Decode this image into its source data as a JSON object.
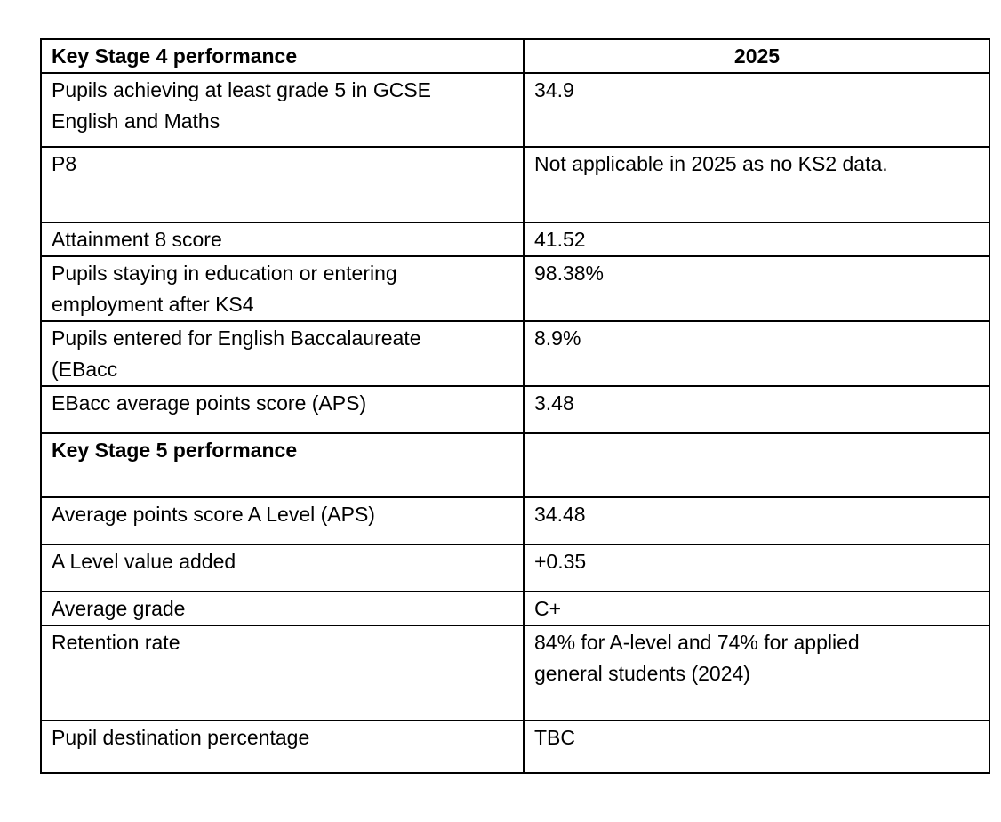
{
  "table": {
    "header": {
      "title": "Key Stage 4 performance",
      "year": "2025"
    },
    "rows": [
      {
        "label": "Pupils achieving at least grade 5 in GCSE\nEnglish and Maths",
        "value": "34.9",
        "section": false
      },
      {
        "label": "P8",
        "value": "Not applicable in 2025 as no KS2 data.",
        "section": false
      },
      {
        "label": "Attainment 8 score",
        "value": "41.52",
        "section": false
      },
      {
        "label": "Pupils staying in education or entering\nemployment after KS4",
        "value": "98.38%",
        "section": false
      },
      {
        "label": "Pupils entered for English Baccalaureate\n(EBacc",
        "value": "8.9%",
        "section": false
      },
      {
        "label": "EBacc average points score (APS)",
        "value": "3.48",
        "section": false
      },
      {
        "label": "Key Stage 5 performance",
        "value": "",
        "section": true
      },
      {
        "label": "Average points score A Level (APS)",
        "value": "34.48",
        "section": false
      },
      {
        "label": "A Level value added",
        "value": "+0.35",
        "section": false
      },
      {
        "label": "Average grade",
        "value": "C+",
        "section": false
      },
      {
        "label": "Retention rate",
        "value": "84% for A-level and 74% for applied\ngeneral students (2024)",
        "section": false
      },
      {
        "label": "Pupil destination percentage",
        "value": "TBC",
        "section": false
      }
    ]
  }
}
